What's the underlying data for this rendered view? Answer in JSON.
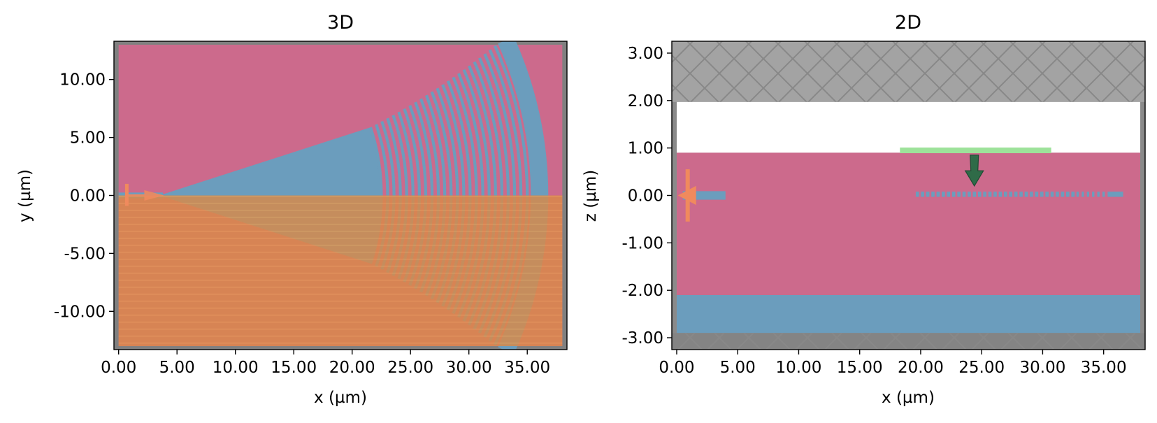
{
  "chart_data": [
    {
      "type": "structure-plot",
      "title": "3D",
      "xlabel": "x (µm)",
      "ylabel": "y (µm)",
      "xlim": [
        -0.4,
        38.4
      ],
      "ylim": [
        -13.3,
        13.3
      ],
      "xticks": [
        "0.00",
        "5.00",
        "10.00",
        "15.00",
        "20.00",
        "25.00",
        "30.00",
        "35.00"
      ],
      "xtick_values": [
        0,
        5,
        10,
        15,
        20,
        25,
        30,
        35
      ],
      "yticks": [
        "10.00",
        "5.00",
        "0.00",
        "-5.00",
        "-10.00"
      ],
      "ytick_values": [
        10,
        5,
        0,
        -5,
        -10
      ],
      "background_color": "#cc6a8c",
      "waveguide_color": "#6b9dbd",
      "symmetry_region": {
        "y_range": [
          -13,
          0
        ],
        "color": "#db8a45"
      },
      "source_color": "#f08a5d",
      "boundary_color": "#808080",
      "grating": {
        "taper_apex": [
          3.5,
          0
        ],
        "half_angle_deg": 18,
        "teeth_start_radius": 19,
        "teeth_end_radius": 31.5,
        "teeth_count": 24,
        "outer_band_radii": [
          31.8,
          33.3
        ]
      }
    },
    {
      "type": "structure-plot",
      "title": "2D",
      "xlabel": "x (µm)",
      "ylabel": "z (µm)",
      "xlim": [
        -0.4,
        38.4
      ],
      "ylim": [
        -3.25,
        3.25
      ],
      "xticks": [
        "0.00",
        "5.00",
        "10.00",
        "15.00",
        "20.00",
        "25.00",
        "30.00",
        "35.00"
      ],
      "xtick_values": [
        0,
        5,
        10,
        15,
        20,
        25,
        30,
        35
      ],
      "yticks": [
        "3.00",
        "2.00",
        "1.00",
        "0.00",
        "-1.00",
        "-2.00",
        "-3.00"
      ],
      "ytick_values": [
        3,
        2,
        1,
        0,
        -1,
        -2,
        -3
      ],
      "layers": [
        {
          "z_range": [
            1.97,
            3.25
          ],
          "color": "#a3a3a3",
          "hatch": true
        },
        {
          "z_range": [
            0.9,
            1.97
          ],
          "color": "#ffffff"
        },
        {
          "z_range": [
            -2.1,
            0.9
          ],
          "color": "#cc6a8c"
        },
        {
          "z_range": [
            -2.9,
            -2.1
          ],
          "color": "#6b9dbd"
        },
        {
          "z_range": [
            -3.25,
            -2.9
          ],
          "color": "#848484",
          "hatch": true
        }
      ],
      "waveguide": {
        "x_range": [
          0.5,
          4.0
        ],
        "z_range": [
          -0.09,
          0.09
        ],
        "color": "#6b9dbd"
      },
      "grating_teeth": {
        "x_start": 19.6,
        "x_end": 36.6,
        "z_range": [
          -0.03,
          0.08
        ],
        "count": 40,
        "color": "#6b9dbd"
      },
      "gaussian_source": {
        "x_range": [
          18.3,
          30.7
        ],
        "z": 0.95,
        "color": "#9de29a"
      },
      "arrow": {
        "x": 24.4,
        "z_from": 0.85,
        "z_to": 0.2,
        "color": "#2f6b48"
      },
      "mode_monitor": {
        "x": 0.9,
        "z_range": [
          -0.55,
          0.55
        ],
        "color": "#f08a5d"
      }
    }
  ]
}
